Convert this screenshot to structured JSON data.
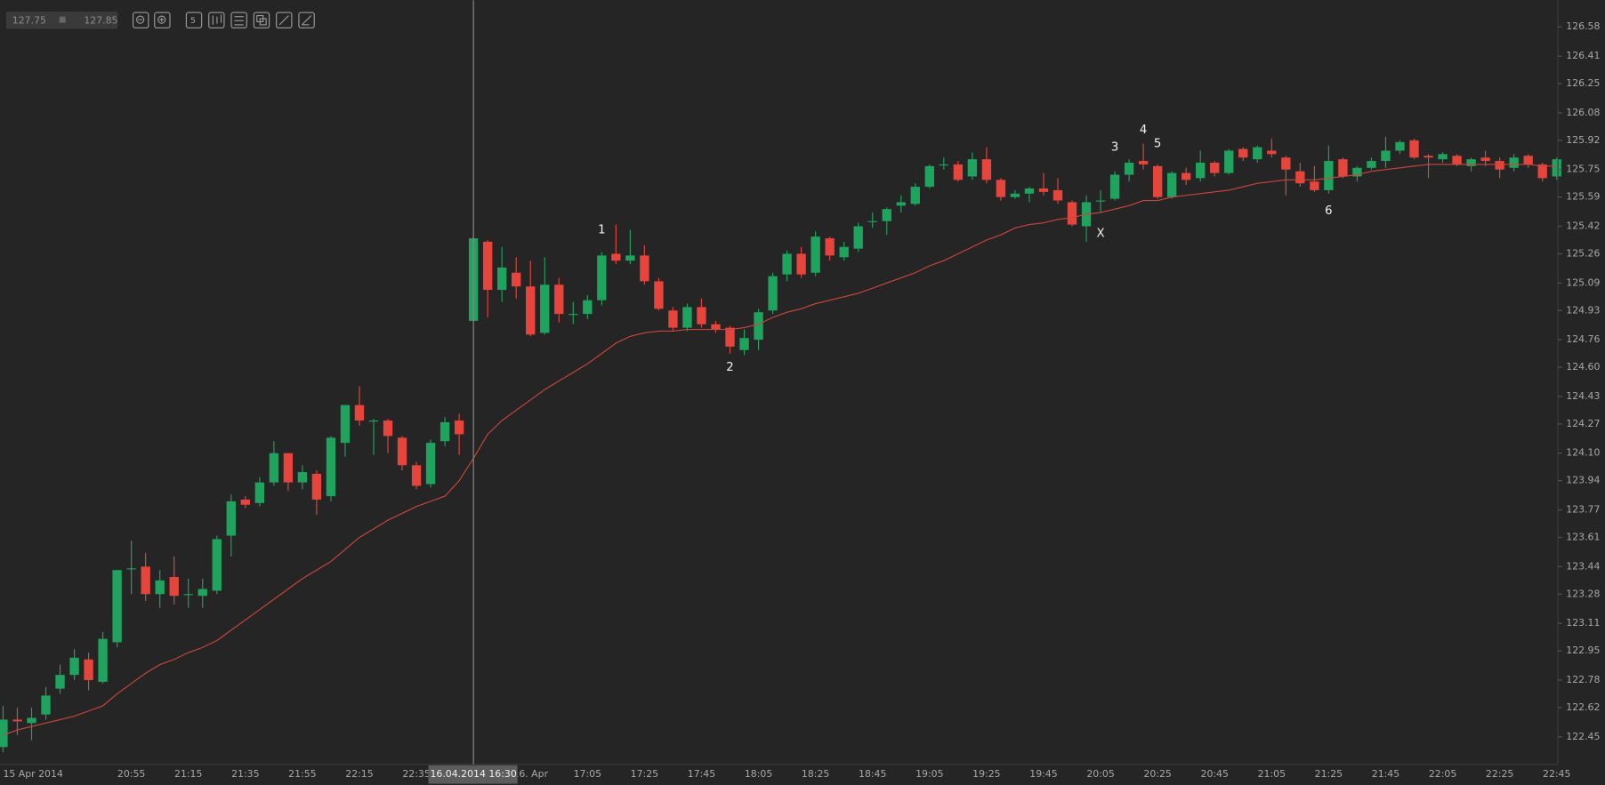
{
  "range": [
    127.75,
    127.85
  ],
  "chart_data": {
    "type": "candlestick",
    "up_color": "#1fa35e",
    "down_color": "#e5453b",
    "line": {
      "color": "#c9463d",
      "values": [
        122.46,
        122.49,
        122.51,
        122.53,
        122.55,
        122.57,
        122.6,
        122.63,
        122.7,
        122.76,
        122.82,
        122.87,
        122.9,
        122.94,
        122.97,
        123.01,
        123.07,
        123.13,
        123.19,
        123.25,
        123.31,
        123.37,
        123.42,
        123.47,
        123.54,
        123.61,
        123.66,
        123.71,
        123.75,
        123.79,
        123.82,
        123.85,
        123.94,
        124.07,
        124.21,
        124.29,
        124.35,
        124.41,
        124.47,
        124.52,
        124.57,
        124.62,
        124.68,
        124.74,
        124.78,
        124.8,
        124.81,
        124.81,
        124.82,
        124.82,
        124.82,
        124.82,
        124.83,
        124.85,
        124.89,
        124.92,
        124.94,
        124.97,
        124.99,
        125.01,
        125.03,
        125.06,
        125.09,
        125.12,
        125.15,
        125.19,
        125.22,
        125.26,
        125.3,
        125.34,
        125.37,
        125.41,
        125.43,
        125.44,
        125.46,
        125.47,
        125.49,
        125.5,
        125.52,
        125.54,
        125.57,
        125.57,
        125.59,
        125.6,
        125.61,
        125.62,
        125.63,
        125.65,
        125.67,
        125.68,
        125.69,
        125.69,
        125.69,
        125.7,
        125.71,
        125.72,
        125.74,
        125.75,
        125.76,
        125.77,
        125.78,
        125.78,
        125.78,
        125.78,
        125.78,
        125.78,
        125.78,
        125.78,
        125.77,
        125.77
      ]
    },
    "categories": [
      "15 Apr 2014",
      null,
      null,
      null,
      null,
      null,
      null,
      null,
      null,
      "20:55",
      null,
      null,
      null,
      "21:15",
      null,
      null,
      null,
      "21:35",
      null,
      null,
      null,
      "21:55",
      null,
      null,
      null,
      "22:15",
      null,
      null,
      null,
      "22:35",
      null,
      null,
      null,
      "16.04.2014 16:30",
      null,
      null,
      null,
      "16. Apr",
      null,
      null,
      null,
      "17:05",
      null,
      null,
      null,
      "17:25",
      null,
      null,
      null,
      "17:45",
      null,
      null,
      null,
      "18:05",
      null,
      null,
      null,
      "18:25",
      null,
      null,
      null,
      "18:45",
      null,
      null,
      null,
      "19:05",
      null,
      null,
      null,
      "19:25",
      null,
      null,
      null,
      "19:45",
      null,
      null,
      null,
      "20:05",
      null,
      null,
      null,
      "20:25",
      null,
      null,
      null,
      "20:45",
      null,
      null,
      null,
      "21:05",
      null,
      null,
      null,
      "21:25",
      null,
      null,
      null,
      "21:45",
      null,
      null,
      null,
      "22:05",
      null,
      null,
      null,
      "22:25",
      null,
      null,
      null,
      "22:45"
    ],
    "crosshair": 33,
    "open": [
      122.39,
      122.55,
      122.53,
      122.58,
      122.73,
      122.81,
      122.9,
      122.77,
      123.0,
      123.43,
      123.44,
      123.28,
      123.38,
      123.28,
      123.27,
      123.3,
      123.62,
      123.83,
      123.81,
      123.93,
      124.1,
      123.93,
      123.98,
      123.85,
      124.16,
      124.38,
      124.29,
      124.29,
      124.19,
      124.03,
      123.92,
      124.17,
      124.29,
      124.87,
      125.33,
      125.05,
      125.15,
      125.07,
      124.8,
      125.08,
      124.91,
      124.91,
      124.99,
      125.26,
      125.22,
      125.25,
      125.1,
      124.93,
      124.83,
      124.95,
      124.85,
      124.83,
      124.7,
      124.76,
      124.93,
      125.14,
      125.26,
      125.15,
      125.35,
      125.24,
      125.29,
      125.45,
      125.45,
      125.54,
      125.55,
      125.65,
      125.78,
      125.78,
      125.71,
      125.81,
      125.69,
      125.59,
      125.61,
      125.64,
      125.63,
      125.56,
      125.42,
      125.57,
      125.58,
      125.72,
      125.8,
      125.77,
      125.59,
      125.73,
      125.7,
      125.79,
      125.73,
      125.87,
      125.81,
      125.86,
      125.82,
      125.74,
      125.68,
      125.63,
      125.81,
      125.71,
      125.76,
      125.8,
      125.86,
      125.92,
      125.83,
      125.81,
      125.83,
      125.77,
      125.82,
      125.8,
      125.76,
      125.83,
      125.78,
      125.71
    ],
    "high": [
      122.63,
      122.62,
      122.62,
      122.74,
      122.87,
      122.96,
      122.94,
      123.06,
      123.42,
      123.59,
      123.52,
      123.42,
      123.5,
      123.37,
      123.37,
      123.62,
      123.86,
      123.85,
      123.96,
      124.17,
      124.1,
      124.03,
      124.0,
      124.2,
      124.38,
      124.49,
      124.3,
      124.3,
      124.2,
      124.05,
      124.18,
      124.31,
      124.33,
      125.36,
      125.34,
      125.3,
      125.24,
      125.22,
      125.24,
      125.12,
      124.98,
      125.02,
      125.27,
      125.43,
      125.4,
      125.31,
      125.12,
      124.95,
      124.97,
      125.0,
      124.87,
      124.84,
      124.82,
      124.94,
      125.15,
      125.28,
      125.3,
      125.39,
      125.36,
      125.33,
      125.44,
      125.5,
      125.53,
      125.6,
      125.67,
      125.78,
      125.82,
      125.8,
      125.85,
      125.88,
      125.7,
      125.63,
      125.65,
      125.73,
      125.7,
      125.57,
      125.6,
      125.63,
      125.74,
      125.81,
      125.9,
      125.78,
      125.74,
      125.76,
      125.86,
      125.8,
      125.87,
      125.88,
      125.89,
      125.93,
      125.83,
      125.79,
      125.77,
      125.89,
      125.82,
      125.77,
      125.82,
      125.94,
      125.92,
      125.93,
      125.84,
      125.85,
      125.84,
      125.82,
      125.86,
      125.82,
      125.84,
      125.84,
      125.79,
      125.82
    ],
    "low": [
      122.36,
      122.46,
      122.43,
      122.55,
      122.7,
      122.78,
      122.72,
      122.76,
      122.97,
      123.28,
      123.24,
      123.2,
      123.22,
      123.2,
      123.2,
      123.28,
      123.5,
      123.78,
      123.79,
      123.91,
      123.88,
      123.89,
      123.74,
      123.82,
      124.08,
      124.26,
      124.09,
      124.1,
      124.0,
      123.89,
      123.9,
      124.14,
      124.09,
      124.86,
      124.89,
      124.98,
      125.0,
      124.78,
      124.79,
      124.86,
      124.85,
      124.88,
      124.96,
      125.2,
      125.2,
      125.08,
      124.93,
      124.81,
      124.81,
      124.83,
      124.8,
      124.68,
      124.67,
      124.7,
      124.91,
      125.1,
      125.12,
      125.13,
      125.22,
      125.22,
      125.27,
      125.41,
      125.37,
      125.5,
      125.54,
      125.64,
      125.75,
      125.68,
      125.69,
      125.67,
      125.57,
      125.58,
      125.56,
      125.6,
      125.55,
      125.42,
      125.33,
      125.5,
      125.57,
      125.68,
      125.75,
      125.58,
      125.58,
      125.66,
      125.68,
      125.71,
      125.72,
      125.8,
      125.79,
      125.82,
      125.6,
      125.65,
      125.62,
      125.61,
      125.7,
      125.68,
      125.75,
      125.76,
      125.84,
      125.81,
      125.7,
      125.79,
      125.77,
      125.74,
      125.77,
      125.7,
      125.74,
      125.76,
      125.68,
      125.69
    ],
    "close": [
      122.55,
      122.54,
      122.56,
      122.69,
      122.81,
      122.91,
      122.78,
      123.02,
      123.42,
      123.43,
      123.28,
      123.36,
      123.27,
      123.28,
      123.31,
      123.6,
      123.82,
      123.8,
      123.93,
      124.1,
      123.93,
      123.99,
      123.83,
      124.19,
      124.38,
      124.29,
      124.29,
      124.2,
      124.03,
      123.91,
      124.16,
      124.28,
      124.21,
      125.35,
      125.05,
      125.18,
      125.07,
      124.79,
      125.08,
      124.91,
      124.91,
      124.99,
      125.25,
      125.22,
      125.25,
      125.1,
      124.94,
      124.83,
      124.95,
      124.85,
      124.82,
      124.72,
      124.77,
      124.92,
      125.13,
      125.26,
      125.14,
      125.36,
      125.25,
      125.3,
      125.42,
      125.45,
      125.52,
      125.56,
      125.65,
      125.77,
      125.78,
      125.69,
      125.81,
      125.69,
      125.59,
      125.61,
      125.64,
      125.62,
      125.57,
      125.43,
      125.56,
      125.57,
      125.72,
      125.79,
      125.78,
      125.59,
      125.73,
      125.69,
      125.79,
      125.73,
      125.86,
      125.82,
      125.88,
      125.84,
      125.75,
      125.67,
      125.63,
      125.8,
      125.71,
      125.76,
      125.8,
      125.86,
      125.91,
      125.82,
      125.82,
      125.84,
      125.78,
      125.81,
      125.8,
      125.75,
      125.82,
      125.78,
      125.7,
      125.81
    ],
    "annotations": [
      {
        "text": "1",
        "at": 42,
        "y": 125.4
      },
      {
        "text": "2",
        "at": 51,
        "y": 124.6
      },
      {
        "text": "3",
        "at": 78,
        "y": 125.88
      },
      {
        "text": "4",
        "at": 80,
        "y": 125.98
      },
      {
        "text": "5",
        "at": 81,
        "y": 125.9
      },
      {
        "text": "X",
        "at": 77,
        "y": 125.38
      },
      {
        "text": "6",
        "at": 93,
        "y": 125.51
      }
    ],
    "ylim": [
      122.29,
      126.735
    ],
    "yticks": [
      126.58,
      126.41,
      126.25,
      126.08,
      125.92,
      125.75,
      125.59,
      125.42,
      125.26,
      125.09,
      124.93,
      124.76,
      {
        "value": 124.6,
        "label": "124.60"
      },
      124.43,
      124.27,
      {
        "value": 124.1,
        "label": "124.10"
      },
      123.94,
      123.77,
      123.61,
      123.44,
      123.28,
      123.11,
      122.95,
      122.78,
      122.62,
      122.45
    ]
  }
}
